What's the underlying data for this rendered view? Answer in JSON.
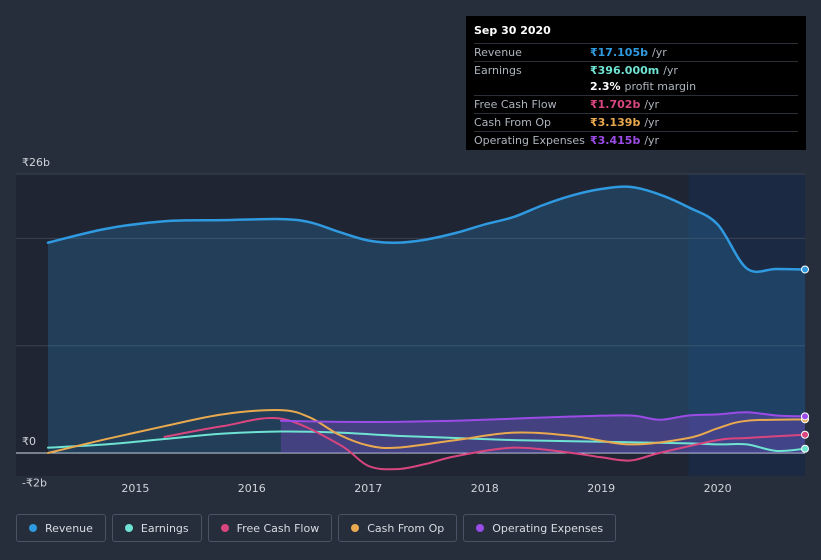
{
  "tooltip": {
    "date": "Sep 30 2020",
    "rows": [
      {
        "label": "Revenue",
        "value": "₹17.105b",
        "unit": "/yr",
        "color": "#2f9ae0"
      },
      {
        "label": "Earnings",
        "value": "₹396.000m",
        "unit": "/yr",
        "color": "#6fe3d2"
      },
      {
        "label": "",
        "value": "2.3%",
        "unit": "profit margin",
        "color": "#ffffff"
      },
      {
        "label": "Free Cash Flow",
        "value": "₹1.702b",
        "unit": "/yr",
        "color": "#d9467f"
      },
      {
        "label": "Cash From Op",
        "value": "₹3.139b",
        "unit": "/yr",
        "color": "#e9a94f"
      },
      {
        "label": "Operating Expenses",
        "value": "₹3.415b",
        "unit": "/yr",
        "color": "#9b4be6"
      }
    ]
  },
  "legend": [
    {
      "label": "Revenue",
      "color": "#2f9ae0"
    },
    {
      "label": "Earnings",
      "color": "#6fe3d2"
    },
    {
      "label": "Free Cash Flow",
      "color": "#d9467f"
    },
    {
      "label": "Cash From Op",
      "color": "#e9a94f"
    },
    {
      "label": "Operating Expenses",
      "color": "#9b4be6"
    }
  ],
  "chart_data": {
    "type": "area",
    "title": "",
    "y_unit": "₹ billions",
    "ylim": [
      -2,
      26
    ],
    "y_tick_labels": [
      {
        "value": 26,
        "label": "₹26b"
      },
      {
        "value": 0,
        "label": "₹0"
      },
      {
        "value": -2,
        "label": "-₹2b"
      }
    ],
    "x_range": [
      2014.25,
      2020.75
    ],
    "x_tick_labels": [
      "2015",
      "2016",
      "2017",
      "2018",
      "2019",
      "2020"
    ],
    "highlight_from": 2019.75,
    "series": [
      {
        "name": "Revenue",
        "color": "#2f9ae0",
        "fill": true,
        "x": [
          2014.25,
          2014.75,
          2015.25,
          2015.75,
          2016.25,
          2016.5,
          2016.75,
          2017.0,
          2017.25,
          2017.5,
          2017.75,
          2018.0,
          2018.25,
          2018.5,
          2018.75,
          2019.0,
          2019.25,
          2019.5,
          2019.75,
          2020.0,
          2020.25,
          2020.5,
          2020.75
        ],
        "y": [
          19.6,
          20.9,
          21.6,
          21.7,
          21.8,
          21.5,
          20.6,
          19.8,
          19.6,
          19.9,
          20.5,
          21.3,
          22.0,
          23.1,
          24.0,
          24.6,
          24.8,
          24.1,
          22.9,
          21.3,
          17.2,
          17.15,
          17.105
        ]
      },
      {
        "name": "Earnings",
        "color": "#6fe3d2",
        "fill": false,
        "x": [
          2014.25,
          2014.75,
          2015.25,
          2015.75,
          2016.25,
          2016.75,
          2017.25,
          2017.75,
          2018.25,
          2018.75,
          2019.25,
          2019.75,
          2020.0,
          2020.25,
          2020.5,
          2020.75
        ],
        "y": [
          0.5,
          0.8,
          1.3,
          1.8,
          2.0,
          1.9,
          1.6,
          1.4,
          1.2,
          1.1,
          1.0,
          0.9,
          0.8,
          0.8,
          0.2,
          0.396
        ]
      },
      {
        "name": "Free Cash Flow",
        "color": "#d9467f",
        "fill": false,
        "x": [
          2015.25,
          2015.75,
          2016.25,
          2016.75,
          2017.0,
          2017.25,
          2017.5,
          2017.75,
          2018.25,
          2018.75,
          2019.0,
          2019.25,
          2019.5,
          2020.0,
          2020.25,
          2020.75
        ],
        "y": [
          1.5,
          2.5,
          3.2,
          0.8,
          -1.2,
          -1.5,
          -1.0,
          -0.3,
          0.5,
          0.0,
          -0.4,
          -0.7,
          0.0,
          1.2,
          1.4,
          1.702
        ]
      },
      {
        "name": "Cash From Op",
        "color": "#e9a94f",
        "fill": false,
        "x": [
          2014.25,
          2014.75,
          2015.25,
          2015.75,
          2016.25,
          2016.5,
          2016.75,
          2017.0,
          2017.25,
          2017.75,
          2018.25,
          2018.75,
          2019.25,
          2019.75,
          2020.0,
          2020.25,
          2020.75
        ],
        "y": [
          0.0,
          1.3,
          2.5,
          3.6,
          4.0,
          3.3,
          1.7,
          0.7,
          0.5,
          1.2,
          1.9,
          1.6,
          0.8,
          1.4,
          2.3,
          3.0,
          3.139
        ]
      },
      {
        "name": "Operating Expenses",
        "color": "#9b4be6",
        "fill": true,
        "x": [
          2016.25,
          2016.75,
          2017.25,
          2017.75,
          2018.25,
          2018.75,
          2019.25,
          2019.5,
          2019.75,
          2020.0,
          2020.25,
          2020.5,
          2020.75
        ],
        "y": [
          3.0,
          2.9,
          2.9,
          3.0,
          3.2,
          3.4,
          3.5,
          3.1,
          3.5,
          3.6,
          3.8,
          3.5,
          3.415
        ]
      }
    ]
  }
}
